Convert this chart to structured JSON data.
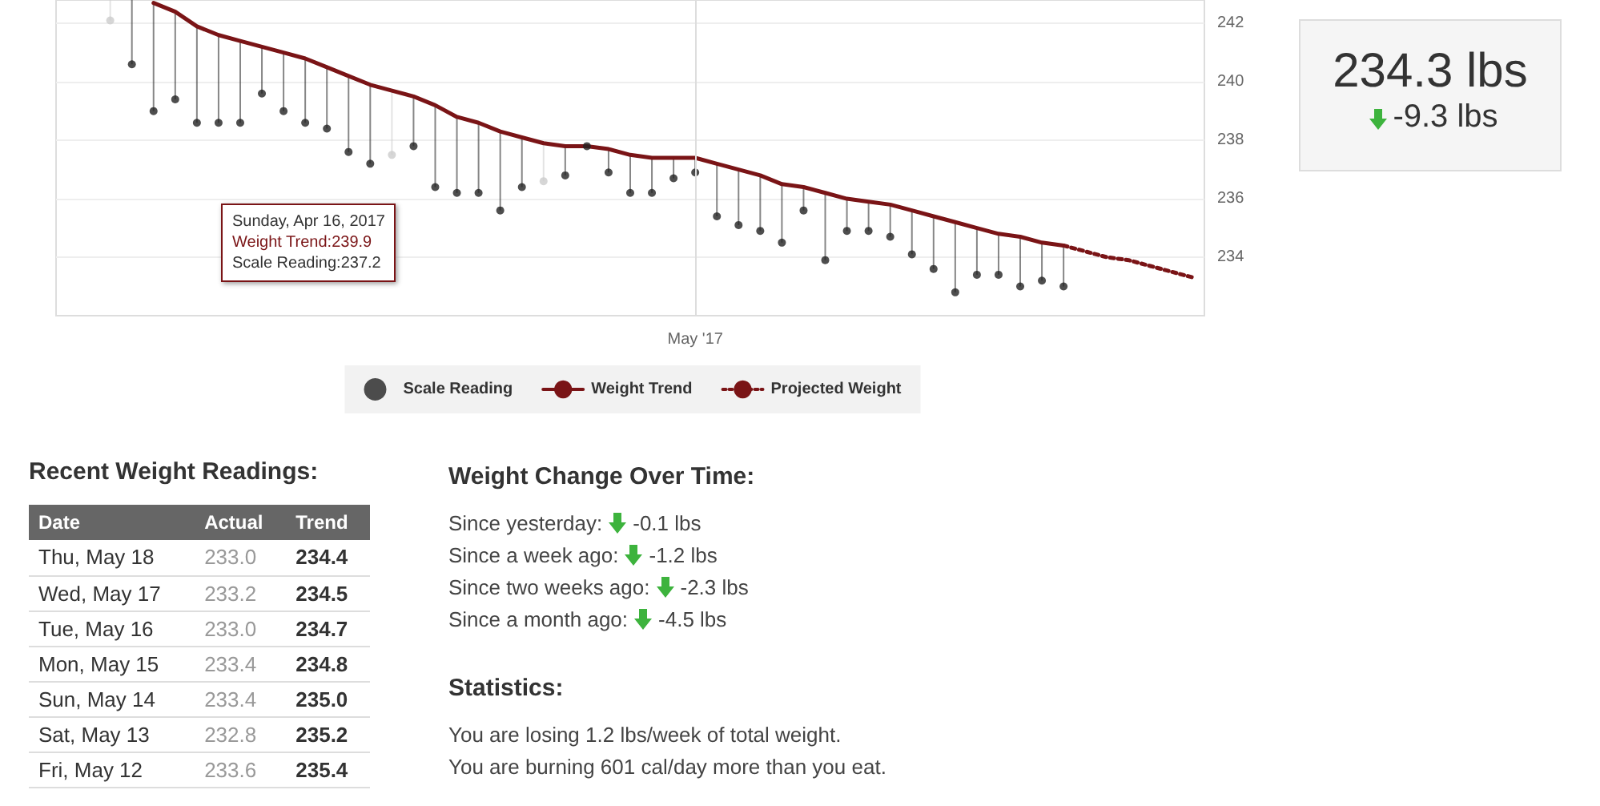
{
  "chart_data": [
    {
      "type": "line",
      "categories": [
        null,
        null,
        null,
        null,
        null,
        null,
        null,
        null,
        null,
        null,
        null,
        null,
        null,
        null,
        null,
        null,
        null,
        null,
        null,
        null,
        null,
        null,
        null,
        null,
        null,
        null,
        null,
        null,
        null,
        "May '17",
        null,
        null,
        null,
        null,
        null,
        null,
        null,
        null,
        null,
        null,
        null,
        null,
        null,
        null,
        null,
        null,
        null,
        null,
        null,
        null,
        null,
        null,
        null
      ],
      "ylim": [
        232,
        242.8
      ],
      "yticks": [
        234,
        236,
        238,
        240,
        242
      ],
      "grid": true,
      "legend": "bottom",
      "series": [
        {
          "name": "Scale Reading",
          "type": "scatter",
          "marker": "circle",
          "color": "#222222",
          "colors": [
            "#222222",
            "#222222",
            "#cccccc",
            "#222222",
            "#222222",
            "#222222",
            "#222222",
            "#222222",
            "#222222",
            "#222222",
            "#222222",
            "#222222",
            "#222222",
            "#222222",
            "#222222",
            "#cccccc",
            "#222222",
            "#222222",
            "#222222",
            "#222222",
            "#222222",
            "#222222",
            "#cccccc",
            "#222222",
            "#222222",
            "#222222",
            "#222222",
            "#222222",
            "#222222",
            "#222222",
            "#222222",
            "#222222",
            "#222222",
            "#222222",
            "#222222",
            "#222222",
            "#222222",
            "#222222",
            "#222222",
            "#222222",
            "#222222",
            "#222222",
            "#222222",
            "#222222",
            "#222222",
            "#222222",
            "#222222",
            "#222222",
            "#222222",
            "#222222",
            "#222222",
            "#222222",
            "#222222"
          ],
          "values": [
            null,
            null,
            242.1,
            240.6,
            239.0,
            239.4,
            238.6,
            238.6,
            238.6,
            239.6,
            239.0,
            238.6,
            238.4,
            237.6,
            237.2,
            237.5,
            237.8,
            236.4,
            236.2,
            236.2,
            235.6,
            236.4,
            236.6,
            236.8,
            237.8,
            236.9,
            236.2,
            236.2,
            236.7,
            236.9,
            235.4,
            235.1,
            234.9,
            234.5,
            235.6,
            233.9,
            234.9,
            234.9,
            234.7,
            234.1,
            233.6,
            232.8,
            233.4,
            233.4,
            233.0,
            233.2,
            233.0,
            null,
            null,
            null,
            null,
            null,
            null
          ],
          "errors": [
            null,
            null,
            [
              242.1,
              242.8
            ],
            [
              240.6,
              242.8
            ],
            [
              239.0,
              242.7
            ],
            [
              239.4,
              242.4
            ],
            [
              238.6,
              241.9
            ],
            [
              238.6,
              241.6
            ],
            [
              238.6,
              241.4
            ],
            [
              239.6,
              241.2
            ],
            [
              239.0,
              241.0
            ],
            [
              238.6,
              240.8
            ],
            [
              238.4,
              240.5
            ],
            [
              237.6,
              240.2
            ],
            [
              237.2,
              239.9
            ],
            [
              237.5,
              239.7
            ],
            [
              237.8,
              239.5
            ],
            [
              236.4,
              239.2
            ],
            [
              236.2,
              238.8
            ],
            [
              236.2,
              238.6
            ],
            [
              235.6,
              238.3
            ],
            [
              236.4,
              238.1
            ],
            [
              236.6,
              237.9
            ],
            [
              236.8,
              237.8
            ],
            null,
            [
              236.9,
              237.7
            ],
            [
              236.2,
              237.5
            ],
            [
              236.2,
              237.4
            ],
            [
              236.7,
              237.4
            ],
            [
              236.9,
              237.4
            ],
            [
              235.4,
              237.2
            ],
            [
              235.1,
              237.0
            ],
            [
              234.9,
              236.8
            ],
            [
              234.5,
              236.5
            ],
            [
              235.6,
              236.4
            ],
            [
              233.9,
              236.2
            ],
            [
              234.9,
              236.0
            ],
            [
              234.9,
              235.9
            ],
            [
              234.7,
              235.8
            ],
            [
              234.1,
              235.6
            ],
            [
              233.6,
              235.4
            ],
            [
              232.8,
              235.2
            ],
            [
              233.4,
              235.0
            ],
            [
              233.4,
              234.8
            ],
            [
              233.0,
              234.7
            ],
            [
              233.2,
              234.5
            ],
            [
              233.0,
              234.4
            ],
            null,
            null,
            null,
            null,
            null,
            null
          ]
        },
        {
          "name": "Weight Trend",
          "type": "line",
          "marker": "none",
          "line_style": "solid",
          "color": "#7a1416",
          "values": [
            null,
            null,
            null,
            null,
            242.7,
            242.4,
            241.9,
            241.6,
            241.4,
            241.2,
            241.0,
            240.8,
            240.5,
            240.2,
            239.9,
            239.7,
            239.5,
            239.2,
            238.8,
            238.6,
            238.3,
            238.1,
            237.9,
            237.8,
            237.8,
            237.7,
            237.5,
            237.4,
            237.4,
            237.4,
            237.2,
            237.0,
            236.8,
            236.5,
            236.4,
            236.2,
            236.0,
            235.9,
            235.8,
            235.6,
            235.4,
            235.2,
            235.0,
            234.8,
            234.7,
            234.5,
            234.4,
            null,
            null,
            null,
            null,
            null,
            null
          ]
        },
        {
          "name": "Projected Weight",
          "type": "line",
          "marker": "none",
          "line_style": "dotted",
          "color": "#7a1416",
          "values": [
            null,
            null,
            null,
            null,
            null,
            null,
            null,
            null,
            null,
            null,
            null,
            null,
            null,
            null,
            null,
            null,
            null,
            null,
            null,
            null,
            null,
            null,
            null,
            null,
            null,
            null,
            null,
            null,
            null,
            null,
            null,
            null,
            null,
            null,
            null,
            null,
            null,
            null,
            null,
            null,
            null,
            null,
            null,
            null,
            null,
            null,
            234.4,
            234.2,
            234.0,
            233.9,
            233.7,
            233.5,
            233.3
          ]
        }
      ],
      "annotations": [
        "Sunday, Apr 16, 2017\nWeight Trend:239.9\nScale Reading:237.2"
      ]
    },
    {
      "type": "other",
      "title": "234.3 lbs",
      "subtitle": "-9.3 lbs"
    },
    {
      "type": "other",
      "title": "Recent Weight Readings:",
      "xlabel": "Date",
      "data_labels": true,
      "categories": [
        "Thu, May 18",
        "Wed, May 17",
        "Tue, May 16",
        "Mon, May 15",
        "Sun, May 14",
        "Sat, May 13",
        "Fri, May 12"
      ],
      "series": [
        {
          "name": "Actual",
          "values": [
            233.0,
            233.2,
            233.0,
            233.4,
            233.4,
            232.8,
            233.6
          ],
          "value_labels": [
            "233.0",
            "233.2",
            "233.0",
            "233.4",
            "233.4",
            "232.8",
            "233.6"
          ]
        },
        {
          "name": "Trend",
          "values": [
            234.4,
            234.5,
            234.7,
            234.8,
            235.0,
            235.2,
            235.4
          ],
          "value_labels": [
            "234.4",
            "234.5",
            "234.7",
            "234.8",
            "235.0",
            "235.2",
            "235.4"
          ]
        }
      ]
    },
    {
      "type": "other",
      "title": "Weight Change Over Time:",
      "annotations": [
        "Since yesterday: -0.1 lbs",
        "Since a week ago: -1.2 lbs",
        "Since two weeks ago: -2.3 lbs",
        "Since a month ago: -4.5 lbs"
      ]
    },
    {
      "type": "other",
      "title": "Statistics:",
      "annotations": [
        "You are losing 1.2 lbs/week of total weight.",
        "You are burning 601 cal/day more than you eat."
      ]
    }
  ]
}
